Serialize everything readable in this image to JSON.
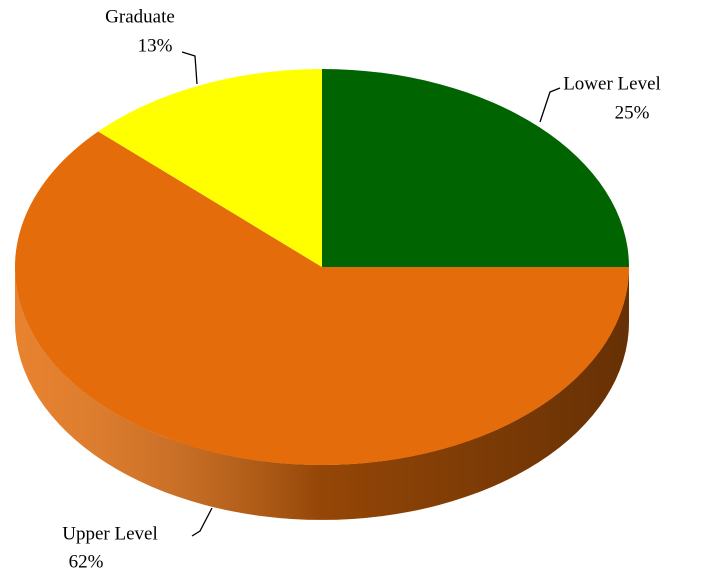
{
  "chart_data": {
    "type": "pie",
    "categories": [
      "Lower Level",
      "Upper Level",
      "Graduate"
    ],
    "values": [
      25,
      62,
      13
    ],
    "value_labels": [
      "25%",
      "62%",
      "13%"
    ],
    "colors": [
      "#006400",
      "#e46c0a",
      "#ffff00"
    ]
  }
}
